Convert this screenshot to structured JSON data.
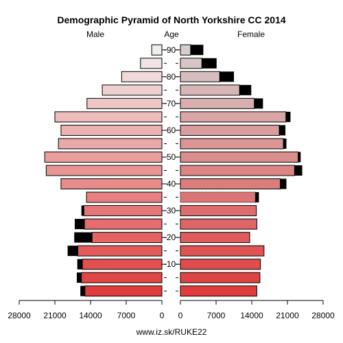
{
  "chart_data": {
    "type": "bar",
    "orientation": "horizontal",
    "layout": "population-pyramid",
    "title": "Demographic Pyramid of North Yorkshire CC 2014",
    "left_label": "Male",
    "center_label": "Age",
    "right_label": "Female",
    "source": "www.iz.sk/RUKE22",
    "x_max": 28000,
    "x_ticks_left": [
      "28000",
      "21000",
      "14000",
      "7000",
      "0"
    ],
    "x_ticks_right": [
      "0",
      "7000",
      "14000",
      "21000",
      "28000"
    ],
    "x_tick_values_left": [
      28000,
      21000,
      14000,
      7000,
      0
    ],
    "x_tick_values_right": [
      0,
      7000,
      14000,
      21000,
      28000
    ],
    "age_labels": [
      "10",
      "20",
      "30",
      "40",
      "50",
      "60",
      "70",
      "80",
      "90"
    ],
    "age_label_values": [
      10,
      20,
      30,
      40,
      50,
      60,
      70,
      80,
      90
    ],
    "age_groups": [
      "0-4",
      "5-9",
      "10-14",
      "15-19",
      "20-24",
      "25-29",
      "30-34",
      "35-39",
      "40-44",
      "45-49",
      "50-54",
      "55-59",
      "60-64",
      "65-69",
      "70-74",
      "75-79",
      "80-84",
      "85-89",
      "90+"
    ],
    "age_group_start": [
      0,
      5,
      10,
      15,
      20,
      25,
      30,
      35,
      40,
      45,
      50,
      55,
      60,
      65,
      70,
      75,
      80,
      85,
      90
    ],
    "male": [
      15100,
      15800,
      15600,
      16500,
      13700,
      15200,
      15300,
      14800,
      19800,
      22700,
      23000,
      20300,
      19800,
      21000,
      14700,
      11700,
      7900,
      4200,
      2000
    ],
    "male_excess": [
      900,
      900,
      1000,
      2000,
      3500,
      1900,
      500,
      0,
      0,
      0,
      0,
      0,
      0,
      0,
      0,
      0,
      0,
      0,
      0
    ],
    "female": [
      15000,
      15600,
      15700,
      16400,
      13600,
      15000,
      14900,
      14700,
      19600,
      22400,
      23100,
      20200,
      19400,
      20700,
      14500,
      11600,
      7700,
      4200,
      2000
    ],
    "female_excess": [
      0,
      0,
      0,
      0,
      0,
      0,
      0,
      700,
      1200,
      1500,
      500,
      600,
      1200,
      900,
      1700,
      2300,
      2800,
      2900,
      2500
    ],
    "highlight_group": 7,
    "series": [
      {
        "name": "Male",
        "values_key": "male"
      },
      {
        "name": "Female",
        "values_key": "female"
      }
    ],
    "colors": {
      "excess": "#000000",
      "young": "#e03c3c",
      "old": "#f2eded"
    }
  }
}
